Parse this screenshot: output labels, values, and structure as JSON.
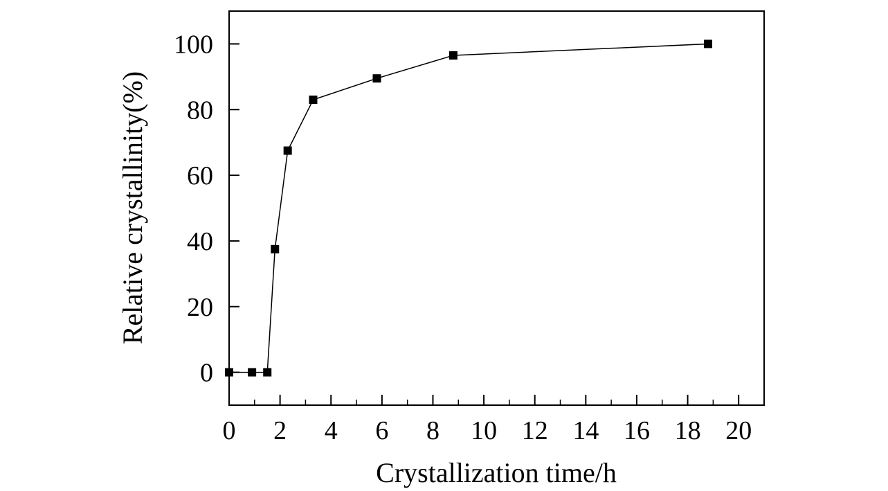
{
  "chart_data": {
    "type": "line",
    "title": "",
    "xlabel": "Crystallization time/h",
    "ylabel": "Relative crystallinity(%)",
    "xlim": [
      0,
      21
    ],
    "ylim": [
      -10,
      110
    ],
    "xticks": [
      0,
      2,
      4,
      6,
      8,
      10,
      12,
      14,
      16,
      18,
      20
    ],
    "yticks": [
      0,
      20,
      40,
      60,
      80,
      100
    ],
    "x_minor_step": 1,
    "grid": false,
    "marker": "square",
    "series": [
      {
        "x": [
          0,
          0.9,
          1.5,
          1.8,
          2.3,
          3.3,
          5.8,
          8.8,
          18.8
        ],
        "y": [
          0,
          0,
          0,
          37.5,
          67.5,
          83,
          89.5,
          96.5,
          100
        ]
      }
    ]
  }
}
